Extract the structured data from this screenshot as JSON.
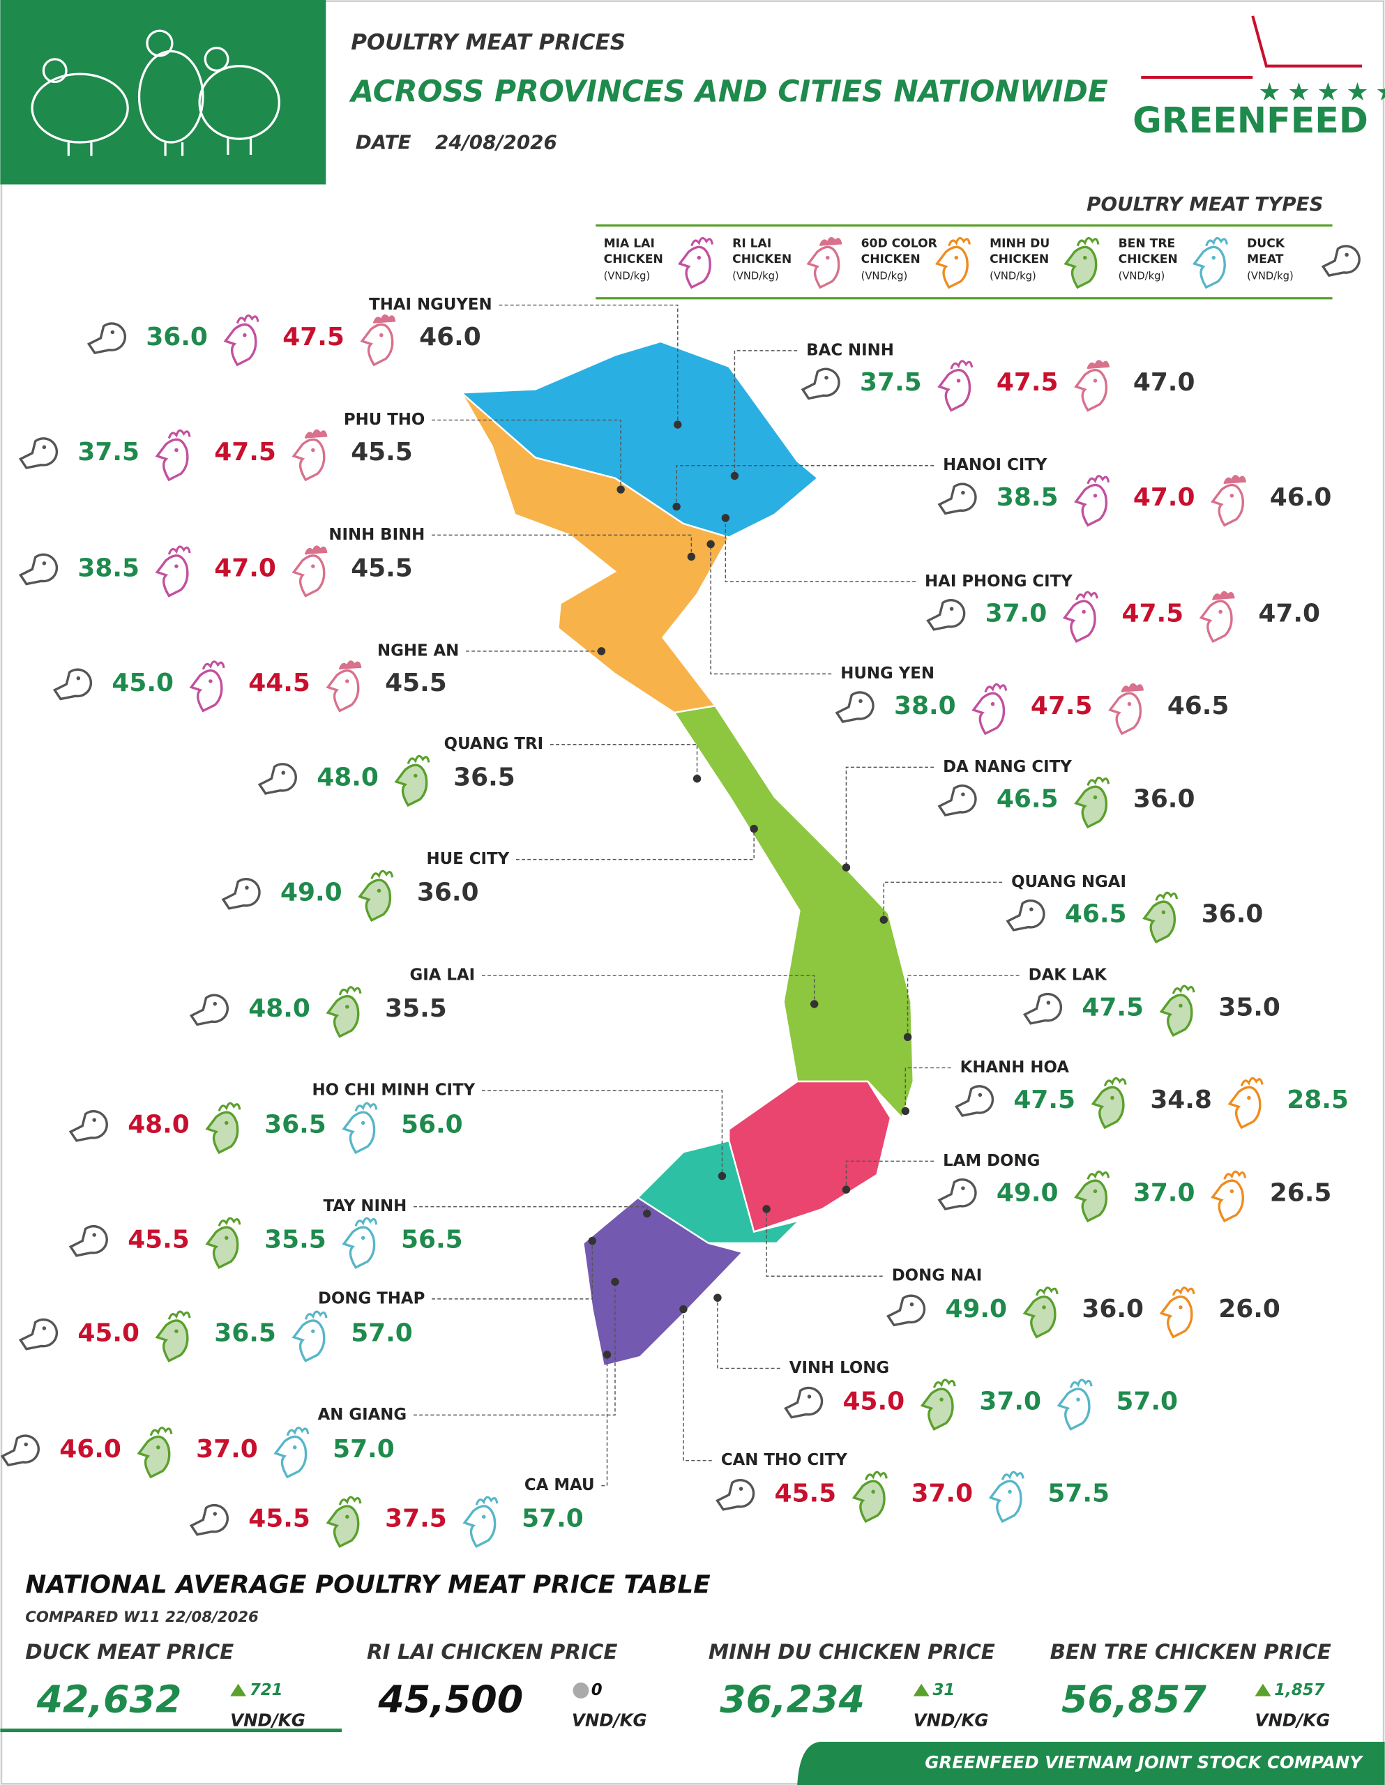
{
  "header": {
    "line1": "POULTRY MEAT PRICES",
    "line2": "ACROSS PROVINCES AND CITIES NATIONWIDE",
    "date_label": "DATE",
    "date": "24/08/2026"
  },
  "logo": "GREENFEED",
  "legend": {
    "title": "POULTRY MEAT TYPES",
    "types": {
      "mia_lai": {
        "lines": [
          "MIA LAI",
          "CHICKEN"
        ],
        "unit": "(VND/kg)",
        "icon_color": "#c2509e"
      },
      "ri_lai": {
        "lines": [
          "RI LAI",
          "CHICKEN"
        ],
        "unit": "(VND/kg)",
        "icon_color": "#d9708c"
      },
      "color_60d": {
        "lines": [
          "60D COLOR",
          "CHICKEN"
        ],
        "unit": "(VND/kg)",
        "icon_color": "#ef8c1e"
      },
      "minh_du": {
        "lines": [
          "MINH DU",
          "CHICKEN"
        ],
        "unit": "(VND/kg)",
        "icon_color": "#5aa02c"
      },
      "ben_tre": {
        "lines": [
          "BEN TRE",
          "CHICKEN"
        ],
        "unit": "(VND/kg)",
        "icon_color": "#56b6c8"
      },
      "duck": {
        "lines": [
          "DUCK",
          "MEAT"
        ],
        "unit": "(VND/kg)",
        "icon_color": "#555555"
      }
    }
  },
  "provinces": [
    {
      "name": "THAI NGUYEN",
      "prices": [
        {
          "meat": "duck",
          "value": "36.0",
          "color": "#1e8a4c"
        },
        {
          "meat": "mia_lai",
          "value": "47.5",
          "color": "#c8102e"
        },
        {
          "meat": "ri_lai",
          "value": "46.0",
          "color": "#333333"
        }
      ]
    },
    {
      "name": "PHU THO",
      "prices": [
        {
          "meat": "duck",
          "value": "37.5",
          "color": "#1e8a4c"
        },
        {
          "meat": "mia_lai",
          "value": "47.5",
          "color": "#c8102e"
        },
        {
          "meat": "ri_lai",
          "value": "45.5",
          "color": "#333333"
        }
      ]
    },
    {
      "name": "NINH BINH",
      "prices": [
        {
          "meat": "duck",
          "value": "38.5",
          "color": "#1e8a4c"
        },
        {
          "meat": "mia_lai",
          "value": "47.0",
          "color": "#c8102e"
        },
        {
          "meat": "ri_lai",
          "value": "45.5",
          "color": "#333333"
        }
      ]
    },
    {
      "name": "NGHE AN",
      "prices": [
        {
          "meat": "duck",
          "value": "45.0",
          "color": "#1e8a4c"
        },
        {
          "meat": "mia_lai",
          "value": "44.5",
          "color": "#c8102e"
        },
        {
          "meat": "ri_lai",
          "value": "45.5",
          "color": "#333333"
        }
      ]
    },
    {
      "name": "QUANG TRI",
      "prices": [
        {
          "meat": "duck",
          "value": "48.0",
          "color": "#1e8a4c"
        },
        {
          "meat": "minh_du",
          "value": "36.5",
          "color": "#333333"
        }
      ]
    },
    {
      "name": "HUE CITY",
      "prices": [
        {
          "meat": "duck",
          "value": "49.0",
          "color": "#1e8a4c"
        },
        {
          "meat": "minh_du",
          "value": "36.0",
          "color": "#333333"
        }
      ]
    },
    {
      "name": "GIA LAI",
      "prices": [
        {
          "meat": "duck",
          "value": "48.0",
          "color": "#1e8a4c"
        },
        {
          "meat": "minh_du",
          "value": "35.5",
          "color": "#333333"
        }
      ]
    },
    {
      "name": "HO CHI MINH CITY",
      "prices": [
        {
          "meat": "duck",
          "value": "48.0",
          "color": "#c8102e"
        },
        {
          "meat": "minh_du",
          "value": "36.5",
          "color": "#1e8a4c"
        },
        {
          "meat": "ben_tre",
          "value": "56.0",
          "color": "#1e8a4c"
        }
      ]
    },
    {
      "name": "TAY NINH",
      "prices": [
        {
          "meat": "duck",
          "value": "45.5",
          "color": "#c8102e"
        },
        {
          "meat": "minh_du",
          "value": "35.5",
          "color": "#1e8a4c"
        },
        {
          "meat": "ben_tre",
          "value": "56.5",
          "color": "#1e8a4c"
        }
      ]
    },
    {
      "name": "DONG THAP",
      "prices": [
        {
          "meat": "duck",
          "value": "45.0",
          "color": "#c8102e"
        },
        {
          "meat": "minh_du",
          "value": "36.5",
          "color": "#1e8a4c"
        },
        {
          "meat": "ben_tre",
          "value": "57.0",
          "color": "#1e8a4c"
        }
      ]
    },
    {
      "name": "AN GIANG",
      "prices": [
        {
          "meat": "duck",
          "value": "46.0",
          "color": "#c8102e"
        },
        {
          "meat": "minh_du",
          "value": "37.0",
          "color": "#c8102e"
        },
        {
          "meat": "ben_tre",
          "value": "57.0",
          "color": "#1e8a4c"
        }
      ]
    },
    {
      "name": "CA MAU",
      "prices": [
        {
          "meat": "duck",
          "value": "45.5",
          "color": "#c8102e"
        },
        {
          "meat": "minh_du",
          "value": "37.5",
          "color": "#c8102e"
        },
        {
          "meat": "ben_tre",
          "value": "57.0",
          "color": "#1e8a4c"
        }
      ]
    },
    {
      "name": "BAC NINH",
      "prices": [
        {
          "meat": "duck",
          "value": "37.5",
          "color": "#1e8a4c"
        },
        {
          "meat": "mia_lai",
          "value": "47.5",
          "color": "#c8102e"
        },
        {
          "meat": "ri_lai",
          "value": "47.0",
          "color": "#333333"
        }
      ]
    },
    {
      "name": "HANOI CITY",
      "prices": [
        {
          "meat": "duck",
          "value": "38.5",
          "color": "#1e8a4c"
        },
        {
          "meat": "mia_lai",
          "value": "47.0",
          "color": "#c8102e"
        },
        {
          "meat": "ri_lai",
          "value": "46.0",
          "color": "#333333"
        }
      ]
    },
    {
      "name": "HAI PHONG CITY",
      "prices": [
        {
          "meat": "duck",
          "value": "37.0",
          "color": "#1e8a4c"
        },
        {
          "meat": "mia_lai",
          "value": "47.5",
          "color": "#c8102e"
        },
        {
          "meat": "ri_lai",
          "value": "47.0",
          "color": "#333333"
        }
      ]
    },
    {
      "name": "HUNG YEN",
      "prices": [
        {
          "meat": "duck",
          "value": "38.0",
          "color": "#1e8a4c"
        },
        {
          "meat": "mia_lai",
          "value": "47.5",
          "color": "#c8102e"
        },
        {
          "meat": "ri_lai",
          "value": "46.5",
          "color": "#333333"
        }
      ]
    },
    {
      "name": "DA NANG CITY",
      "prices": [
        {
          "meat": "duck",
          "value": "46.5",
          "color": "#1e8a4c"
        },
        {
          "meat": "minh_du",
          "value": "36.0",
          "color": "#333333"
        }
      ]
    },
    {
      "name": "QUANG NGAI",
      "prices": [
        {
          "meat": "duck",
          "value": "46.5",
          "color": "#1e8a4c"
        },
        {
          "meat": "minh_du",
          "value": "36.0",
          "color": "#333333"
        }
      ]
    },
    {
      "name": "DAK LAK",
      "prices": [
        {
          "meat": "duck",
          "value": "47.5",
          "color": "#1e8a4c"
        },
        {
          "meat": "minh_du",
          "value": "35.0",
          "color": "#333333"
        }
      ]
    },
    {
      "name": "KHANH HOA",
      "prices": [
        {
          "meat": "duck",
          "value": "47.5",
          "color": "#1e8a4c"
        },
        {
          "meat": "minh_du",
          "value": "34.8",
          "color": "#333333"
        },
        {
          "meat": "color_60d",
          "value": "28.5",
          "color": "#1e8a4c"
        }
      ]
    },
    {
      "name": "LAM DONG",
      "prices": [
        {
          "meat": "duck",
          "value": "49.0",
          "color": "#1e8a4c"
        },
        {
          "meat": "minh_du",
          "value": "37.0",
          "color": "#1e8a4c"
        },
        {
          "meat": "color_60d",
          "value": "26.5",
          "color": "#333333"
        }
      ]
    },
    {
      "name": "DONG NAI",
      "prices": [
        {
          "meat": "duck",
          "value": "49.0",
          "color": "#1e8a4c"
        },
        {
          "meat": "minh_du",
          "value": "36.0",
          "color": "#333333"
        },
        {
          "meat": "color_60d",
          "value": "26.0",
          "color": "#333333"
        }
      ]
    },
    {
      "name": "VINH LONG",
      "prices": [
        {
          "meat": "duck",
          "value": "45.0",
          "color": "#c8102e"
        },
        {
          "meat": "minh_du",
          "value": "37.0",
          "color": "#1e8a4c"
        },
        {
          "meat": "ben_tre",
          "value": "57.0",
          "color": "#1e8a4c"
        }
      ]
    },
    {
      "name": "CAN THO CITY",
      "prices": [
        {
          "meat": "duck",
          "value": "45.5",
          "color": "#c8102e"
        },
        {
          "meat": "minh_du",
          "value": "37.0",
          "color": "#c8102e"
        },
        {
          "meat": "ben_tre",
          "value": "57.5",
          "color": "#1e8a4c"
        }
      ]
    }
  ],
  "national": {
    "title": "NATIONAL AVERAGE POULTRY MEAT PRICE TABLE",
    "compared": "COMPARED W11 22/08/2026",
    "unit": "VND/KG",
    "items": [
      {
        "title": "DUCK MEAT PRICE",
        "value": "42,632",
        "change": "721",
        "direction": "up",
        "color": "#1e8a4c"
      },
      {
        "title": "RI LAI CHICKEN PRICE",
        "value": "45,500",
        "change": "0",
        "direction": "flat",
        "color": "#111111"
      },
      {
        "title": "MINH DU CHICKEN PRICE",
        "value": "36,234",
        "change": "31",
        "direction": "up",
        "color": "#1e8a4c"
      },
      {
        "title": "BEN TRE CHICKEN PRICE",
        "value": "56,857",
        "change": "1,857",
        "direction": "up",
        "color": "#1e8a4c"
      }
    ]
  },
  "footer": "GREENFEED VIETNAM JOINT STOCK COMPANY"
}
